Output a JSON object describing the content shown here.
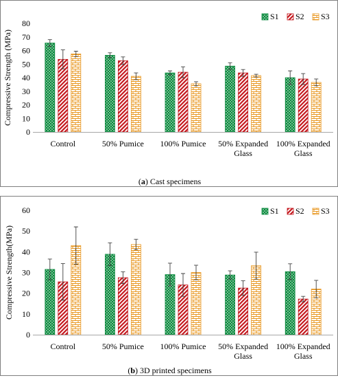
{
  "captions": {
    "a_prefix": "(",
    "a_letter": "a",
    "a_suffix": ") Cast specimens",
    "b_prefix": "(",
    "b_letter": "b",
    "b_suffix": ") 3D printed specimens"
  },
  "colors": {
    "S1": "#0b8a3e",
    "S2": "#c4161c",
    "S3": "#e8961e"
  },
  "chart_data": [
    {
      "type": "bar",
      "title": "",
      "xlabel": "",
      "ylabel": "Compressive Strength (MPa)",
      "ylim": [
        0,
        80
      ],
      "yticks": [
        0,
        10,
        20,
        30,
        40,
        50,
        60,
        70,
        80
      ],
      "grid": false,
      "legend": "top-right",
      "categories": [
        [
          "Control"
        ],
        [
          "50% Pumice"
        ],
        [
          "100% Pumice"
        ],
        [
          "50% Expanded",
          "Glass"
        ],
        [
          "100% Expanded",
          "Glass"
        ]
      ],
      "series": [
        {
          "name": "S1",
          "pattern": "dots",
          "values": [
            65.5,
            56.5,
            43.5,
            48.5,
            40
          ],
          "errors": [
            2.5,
            1.8,
            1.5,
            2.5,
            5
          ]
        },
        {
          "name": "S2",
          "pattern": "hatch",
          "values": [
            53.5,
            52.5,
            44,
            43.5,
            39
          ],
          "errors": [
            7,
            2.8,
            4,
            2.5,
            4
          ]
        },
        {
          "name": "S3",
          "pattern": "brick",
          "values": [
            57.5,
            41,
            35.5,
            41.5,
            36.5
          ],
          "errors": [
            2,
            2.5,
            1.5,
            1,
            2.5
          ]
        }
      ]
    },
    {
      "type": "bar",
      "title": "",
      "xlabel": "",
      "ylabel": "Compressive Strength(MPa)",
      "ylim": [
        0,
        60
      ],
      "yticks": [
        0,
        10,
        20,
        30,
        40,
        50,
        60
      ],
      "grid": false,
      "legend": "top-right",
      "categories": [
        [
          "Control"
        ],
        [
          "50% Pumice"
        ],
        [
          "100% Pumice"
        ],
        [
          "50% Expanded",
          "Glass"
        ],
        [
          "100% Expanded",
          "Glass"
        ]
      ],
      "series": [
        {
          "name": "S1",
          "pattern": "dots",
          "values": [
            31.5,
            38.8,
            29,
            28.8,
            30.4
          ],
          "errors": [
            5,
            5.5,
            5.5,
            2,
            3.8
          ]
        },
        {
          "name": "S2",
          "pattern": "hatch",
          "values": [
            25.5,
            27.5,
            24,
            22.5,
            17.2
          ],
          "errors": [
            8.8,
            2.8,
            5.5,
            3.5,
            1.3
          ]
        },
        {
          "name": "S3",
          "pattern": "brick",
          "values": [
            43,
            43.5,
            30,
            33.3,
            22
          ],
          "errors": [
            9,
            2.5,
            3.5,
            6.5,
            4.2
          ]
        }
      ]
    }
  ]
}
